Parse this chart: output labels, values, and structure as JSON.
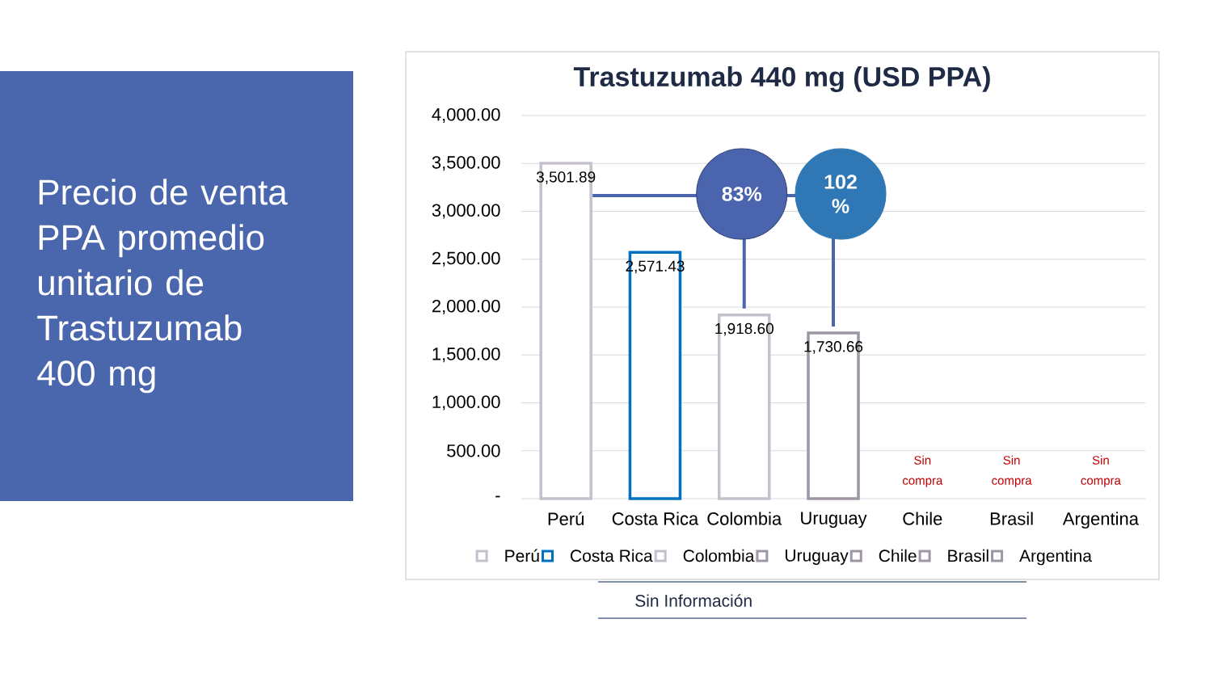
{
  "chart_data": {
    "type": "bar",
    "title": "Trastuzumab 440 mg (USD PPA)",
    "subtitle": "Precio de venta PPA promedio unitario de Trastuzumab 400 mg",
    "categories": [
      "Perú",
      "Costa Rica",
      "Colombia",
      "Uruguay",
      "Chile",
      "Brasil",
      "Argentina"
    ],
    "series": [
      {
        "name": "Perú",
        "color": "#c6c0cc",
        "values": [
          3501.89,
          null,
          null,
          null,
          null,
          null,
          null
        ],
        "value_labels": [
          "3,501.89",
          null,
          null,
          null,
          null,
          null,
          null
        ]
      },
      {
        "name": "Costa Rica",
        "color": "#0070c0",
        "values": [
          null,
          2571.43,
          null,
          null,
          null,
          null,
          null
        ],
        "value_labels": [
          null,
          "2,571.43",
          null,
          null,
          null,
          null,
          null
        ]
      },
      {
        "name": "Colombia",
        "color": "#c6c0cc",
        "values": [
          null,
          null,
          1918.6,
          null,
          null,
          null,
          null
        ],
        "value_labels": [
          null,
          null,
          "1,918.60",
          null,
          null,
          null,
          null
        ]
      },
      {
        "name": "Uruguay",
        "color": "#9f96a5",
        "values": [
          null,
          null,
          null,
          1730.66,
          null,
          null,
          null
        ],
        "value_labels": [
          null,
          null,
          null,
          "1,730.66",
          null,
          null,
          null
        ]
      },
      {
        "name": "Chile",
        "color": "#9f96a5",
        "values": [
          null,
          null,
          null,
          null,
          null,
          null,
          null
        ],
        "value_labels": [
          null,
          null,
          null,
          null,
          "Sin compra",
          null,
          null
        ]
      },
      {
        "name": "Brasil",
        "color": "#9f96a5",
        "values": [
          null,
          null,
          null,
          null,
          null,
          null,
          null
        ],
        "value_labels": [
          null,
          null,
          null,
          null,
          null,
          "Sin compra",
          null
        ]
      },
      {
        "name": "Argentina",
        "color": "#9f96a5",
        "values": [
          null,
          null,
          null,
          null,
          null,
          null,
          null
        ],
        "value_labels": [
          null,
          null,
          null,
          null,
          null,
          null,
          "Sin compra"
        ]
      }
    ],
    "ylim": [
      0,
      4000
    ],
    "yticks": [
      {
        "value": 0,
        "label": "-"
      },
      {
        "value": 500,
        "label": "500.00"
      },
      {
        "value": 1000,
        "label": "1,000.00"
      },
      {
        "value": 1500,
        "label": "1,500.00"
      },
      {
        "value": 2000,
        "label": "2,000.00"
      },
      {
        "value": 2500,
        "label": "2,500.00"
      },
      {
        "value": 3000,
        "label": "3,000.00"
      },
      {
        "value": 3500,
        "label": "3,500.00"
      },
      {
        "value": 4000,
        "label": "4,000.00"
      }
    ],
    "grid": "y",
    "legend": "bottom",
    "annotations": [
      {
        "text": "83%",
        "x": "Colombia",
        "y": 1918.6
      },
      {
        "text": "102 %",
        "x": "Uruguay",
        "y": 1730.66
      },
      "Sin Información"
    ]
  }
}
